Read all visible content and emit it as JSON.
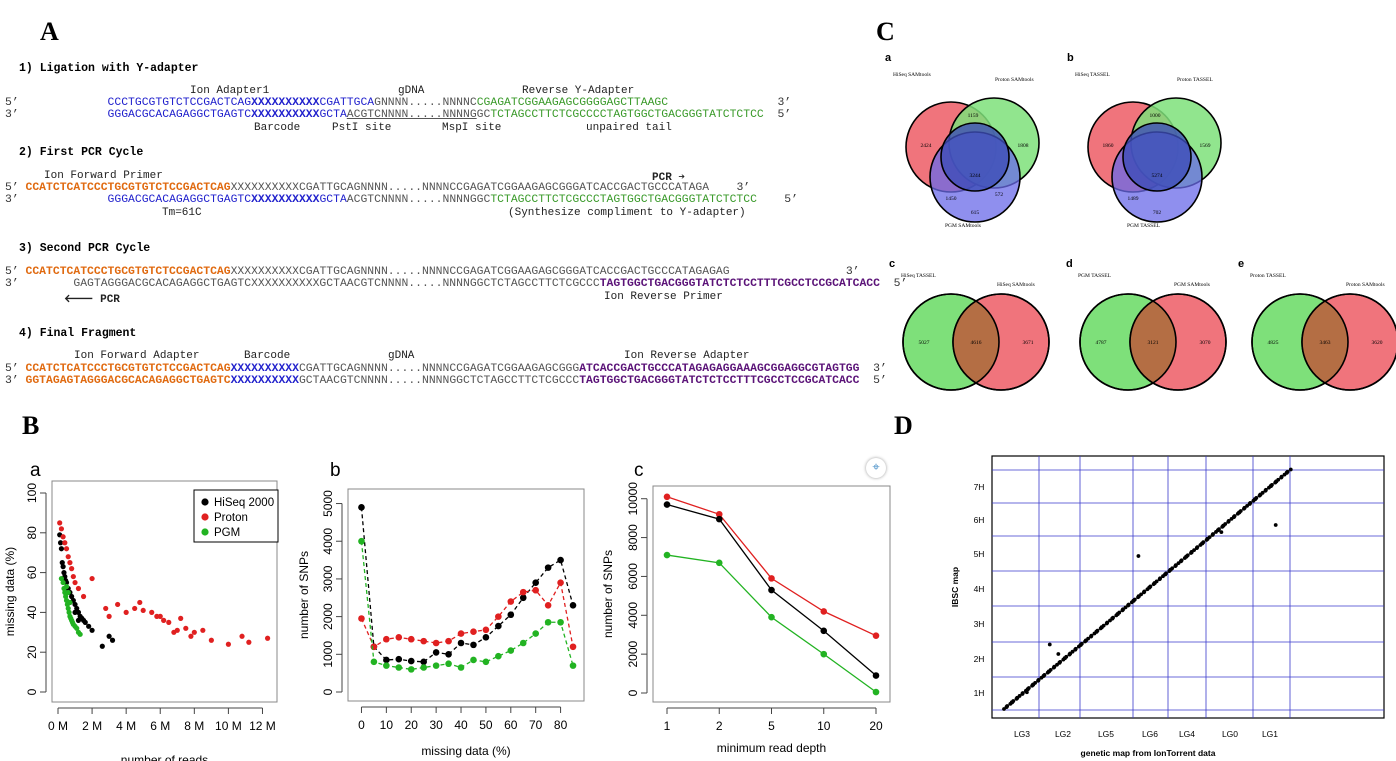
{
  "panels": {
    "A": "A",
    "B": "B",
    "C": "C",
    "D": "D"
  },
  "panelA": {
    "step1": {
      "title": "1) Ligation with Y-adapter",
      "top_labels": {
        "ion_adapter": "Ion Adapter1",
        "gdna": "gDNA",
        "reverse_y": "Reverse Y-Adapter"
      },
      "line1": {
        "p5": "5’",
        "blue": "CCCTGCGTGTCTCCGACTCAG",
        "barcode": "XXXXXXXXXX",
        "blue2": "CGATTGCA",
        "gray": "GNNNN.....NNNNC",
        "green": "CGAGATCGGAAGAGCGGGGAGCTTAAGC",
        "p3": "3’"
      },
      "line2": {
        "p3": "3’",
        "blue": "GGGACGCACAGAGGCTGAGTC",
        "barcode": "XXXXXXXXXX",
        "blue2": "GCTA",
        "gray1": "ACGTCNNNN.....NNNNG",
        "gray2": "GC",
        "green": "TCTAGCCTTCTCGCCCCTAGTGGCTGACGGGTATCTCTCC",
        "p5": "5’"
      },
      "bottom_labels": {
        "barcode": "Barcode",
        "psti": "PstI site",
        "mspi": "MspI site",
        "unpaired": "unpaired tail"
      }
    },
    "step2": {
      "title": "2) First PCR Cycle",
      "primer": "Ion Forward Primer",
      "pcr": "PCR",
      "line1": {
        "p5": "5’",
        "orange": "CCATCTCATCCCTGCGTGTCTCCGACTCAG",
        "gray": "XXXXXXXXXXCGATTGCAGNNNN.....NNNNCCGAGATCGGAAGAGCGGGATCACCGACTGCCCATAGA",
        "p3": "3’"
      },
      "line2": {
        "p3": "3’",
        "blue": "GGGACGCACAGAGGCTGAGTC",
        "barcode": "XXXXXXXXXX",
        "blue2": "GCTA",
        "gray": "ACGTCNNNN.....NNNNGGC",
        "green": "TCTAGCCTTCTCGCCCTAGTGGCTGACGGGTATCTCTCC",
        "p5": "5’"
      },
      "tm": "Tm=61C",
      "note": "(Synthesize compliment to Y-adapter)"
    },
    "step3": {
      "title": "3) Second PCR Cycle",
      "line1": {
        "p5": "5’",
        "orange": "CCATCTCATCCCTGCGTGTCTCCGACTCAG",
        "gray": "XXXXXXXXXXCGATTGCAGNNNN.....NNNNCCGAGATCGGAAGAGCGGGATCACCGACTGCCCATAGAGAG",
        "p3": "3’"
      },
      "line2": {
        "p3": "3’",
        "gray": "GAGTAGGGACGCACAGAGGCTGAGTCXXXXXXXXXXGCTAACGTCNNNN.....NNNNGGCTCTAGCCTTCTCGCCC",
        "purple": "TAGTGGCTGACGGGTATCTCTCCTTTCGCCTCCGCATCACC",
        "p5": "5’"
      },
      "pcr": "PCR",
      "primer": "Ion Reverse Primer"
    },
    "step4": {
      "title": "4) Final Fragment",
      "labels": {
        "fwd": "Ion Forward Adapter",
        "barcode": "Barcode",
        "gdna": "gDNA",
        "rev": "Ion Reverse Adapter"
      },
      "line1": {
        "p5": "5’",
        "orange": "CCATCTCATCCCTGCGTGTCTCCGACTCAG",
        "barcode": "XXXXXXXXXX",
        "gray": "CGATTGCAGNNNN.....NNNNCCGAGATCGGAAGAGCGGG",
        "purple": "ATCACCGACTGCCCATAGAGAGGAAAGCGGAGGCGTAGTGG",
        "p3": "3’"
      },
      "line2": {
        "p3": "3’",
        "orange": "GGTAGAGTAGGGACGCACAGAGGCTGAGTC",
        "barcode": "XXXXXXXXXX",
        "gray": "GCTAACGTCNNNN.....NNNNGGCTCTAGCCTTCTCGCCC",
        "purple": "TAGTGGCTGACGGGTATCTCTCCTTTCGCCTCCGCATCACC",
        "p5": "5’"
      }
    }
  },
  "colors": {
    "red": "#e02020",
    "black": "#000000",
    "green": "#22b322",
    "blue_line": "#3a3acc",
    "venn_red": "#f0747c",
    "venn_green": "#7ee07a",
    "venn_blue": "#6a6ae8",
    "venn_overlap": "#b46e44"
  },
  "chart_data": [
    {
      "id": "Ba",
      "type": "scatter",
      "sublabel": "a",
      "xlabel": "number of reads",
      "ylabel": "missing data (%)",
      "xticks": [
        "0 M",
        "2 M",
        "4 M",
        "6 M",
        "8 M",
        "10 M",
        "12 M"
      ],
      "xlim": [
        0,
        12.5
      ],
      "yticks": [
        0,
        20,
        40,
        60,
        80,
        100
      ],
      "ylim": [
        0,
        100
      ],
      "legend": [
        "HiSeq 2000",
        "Proton",
        "PGM"
      ],
      "series": [
        {
          "name": "HiSeq 2000",
          "color": "#000000",
          "points": [
            [
              0.1,
              79
            ],
            [
              0.15,
              75
            ],
            [
              0.2,
              72
            ],
            [
              0.25,
              65
            ],
            [
              0.3,
              63
            ],
            [
              0.35,
              60
            ],
            [
              0.4,
              58
            ],
            [
              0.45,
              56
            ],
            [
              0.5,
              55
            ],
            [
              0.6,
              52
            ],
            [
              0.7,
              50
            ],
            [
              0.8,
              48
            ],
            [
              0.9,
              46
            ],
            [
              1.0,
              44
            ],
            [
              1.1,
              42
            ],
            [
              1.2,
              40
            ],
            [
              1.3,
              38
            ],
            [
              1.4,
              37
            ],
            [
              1.5,
              36
            ],
            [
              1.6,
              35
            ],
            [
              1.8,
              33
            ],
            [
              2.0,
              31
            ],
            [
              0.7,
              45
            ],
            [
              1.0,
              40
            ],
            [
              1.2,
              36
            ],
            [
              2.6,
              23
            ],
            [
              3.0,
              28
            ],
            [
              3.2,
              26
            ]
          ]
        },
        {
          "name": "Proton",
          "color": "#e02020",
          "points": [
            [
              0.1,
              85
            ],
            [
              0.2,
              82
            ],
            [
              0.3,
              78
            ],
            [
              0.4,
              75
            ],
            [
              0.5,
              72
            ],
            [
              0.6,
              68
            ],
            [
              0.7,
              65
            ],
            [
              0.8,
              62
            ],
            [
              0.9,
              58
            ],
            [
              1.0,
              55
            ],
            [
              1.2,
              52
            ],
            [
              1.5,
              48
            ],
            [
              2.0,
              57
            ],
            [
              3.0,
              38
            ],
            [
              3.5,
              44
            ],
            [
              4.5,
              42
            ],
            [
              4.8,
              45
            ],
            [
              5.0,
              41
            ],
            [
              5.5,
              40
            ],
            [
              6.0,
              38
            ],
            [
              6.2,
              36
            ],
            [
              6.5,
              35
            ],
            [
              7.0,
              31
            ],
            [
              7.5,
              32
            ],
            [
              8.0,
              30
            ],
            [
              8.5,
              31
            ],
            [
              9.0,
              26
            ],
            [
              10.0,
              24
            ],
            [
              10.8,
              28
            ],
            [
              11.2,
              25
            ],
            [
              12.3,
              27
            ],
            [
              7.2,
              37
            ],
            [
              7.8,
              28
            ],
            [
              6.8,
              30
            ],
            [
              5.8,
              38
            ],
            [
              4.0,
              40
            ],
            [
              2.8,
              42
            ]
          ]
        },
        {
          "name": "PGM",
          "color": "#22b322",
          "points": [
            [
              0.2,
              57
            ],
            [
              0.3,
              55
            ],
            [
              0.35,
              52
            ],
            [
              0.4,
              50
            ],
            [
              0.45,
              48
            ],
            [
              0.5,
              46
            ],
            [
              0.55,
              44
            ],
            [
              0.6,
              42
            ],
            [
              0.65,
              40
            ],
            [
              0.7,
              38
            ],
            [
              0.75,
              37
            ],
            [
              0.8,
              36
            ],
            [
              0.85,
              35
            ],
            [
              0.9,
              34
            ],
            [
              1.0,
              33
            ],
            [
              1.1,
              32
            ],
            [
              1.2,
              30
            ],
            [
              1.3,
              29
            ],
            [
              0.5,
              53
            ],
            [
              0.6,
              50
            ],
            [
              0.7,
              45
            ]
          ]
        }
      ]
    },
    {
      "id": "Bb",
      "type": "line",
      "sublabel": "b",
      "xlabel": "missing data (%)",
      "ylabel": "number of SNPs",
      "x": [
        0,
        5,
        10,
        15,
        20,
        25,
        30,
        35,
        40,
        45,
        50,
        55,
        60,
        65,
        70,
        75,
        80,
        85
      ],
      "xticks": [
        0,
        10,
        20,
        30,
        40,
        50,
        60,
        70,
        80
      ],
      "xlim": [
        -3,
        87
      ],
      "yticks": [
        0,
        1000,
        2000,
        3000,
        4000,
        5000
      ],
      "ylim": [
        0,
        5200
      ],
      "series": [
        {
          "name": "HiSeq 2000",
          "color": "#000000",
          "values": [
            4900,
            1200,
            850,
            870,
            820,
            800,
            1050,
            1000,
            1300,
            1250,
            1450,
            1750,
            2050,
            2500,
            2900,
            3300,
            3500,
            2300
          ],
          "dashed": true
        },
        {
          "name": "Proton",
          "color": "#e02020",
          "values": [
            1950,
            1200,
            1400,
            1450,
            1400,
            1350,
            1300,
            1350,
            1550,
            1600,
            1650,
            2000,
            2400,
            2650,
            2700,
            2300,
            2900,
            1200
          ],
          "dashed": true
        },
        {
          "name": "PGM",
          "color": "#22b322",
          "values": [
            4000,
            800,
            700,
            650,
            600,
            650,
            700,
            750,
            650,
            850,
            800,
            950,
            1100,
            1300,
            1550,
            1850,
            1850,
            700
          ],
          "dashed": true
        }
      ]
    },
    {
      "id": "Bc",
      "type": "line",
      "sublabel": "c",
      "xlabel": "minimum read depth",
      "ylabel": "number of SNPs",
      "categories": [
        "1",
        "2",
        "5",
        "10",
        "20"
      ],
      "yticks": [
        0,
        2000,
        4000,
        6000,
        8000,
        10000
      ],
      "ylim": [
        0,
        10500
      ],
      "series": [
        {
          "name": "Proton",
          "color": "#e02020",
          "values": [
            10100,
            9200,
            5900,
            4200,
            2950
          ]
        },
        {
          "name": "HiSeq 2000",
          "color": "#000000",
          "values": [
            9700,
            8950,
            5300,
            3200,
            900
          ]
        },
        {
          "name": "PGM",
          "color": "#22b322",
          "values": [
            7100,
            6700,
            3900,
            2000,
            50
          ]
        }
      ]
    },
    {
      "id": "D",
      "type": "scatter",
      "xlabel": "genetic map from IonTorrent data",
      "ylabel": "IBSC map",
      "xticks": [
        "LG3",
        "LG2",
        "LG5",
        "LG6",
        "LG4",
        "LG0",
        "LG1"
      ],
      "yticks": [
        "1H",
        "2H",
        "3H",
        "4H",
        "5H",
        "6H",
        "7H"
      ],
      "trend": {
        "from": [
          0.0,
          0.0
        ],
        "to": [
          1.0,
          1.0
        ]
      },
      "outliers": [
        [
          0.08,
          0.07
        ],
        [
          0.12,
          0.12
        ],
        [
          0.16,
          0.27
        ],
        [
          0.19,
          0.23
        ],
        [
          0.47,
          0.64
        ],
        [
          0.76,
          0.74
        ],
        [
          0.95,
          0.77
        ]
      ]
    }
  ],
  "venn": {
    "a": {
      "label": "a",
      "set1": "HiSeq SAMtools",
      "set2": "Proton SAMtools",
      "set3": "PGM SAMtools",
      "v1": "2424",
      "v12": "1159",
      "v2": "1808",
      "center": "3244",
      "v13": "1450",
      "v23": "572",
      "v3": "615"
    },
    "b": {
      "label": "b",
      "set1": "HiSeq TASSEL",
      "set2": "Proton TASSEL",
      "set3": "PGM TASSEL",
      "v1": "1860",
      "v12": "1000",
      "v2": "1569",
      "center": "5274",
      "v13": "1489",
      "v23": "",
      "v3": "702"
    },
    "c": {
      "label": "c",
      "set1": "HiSeq TASSEL",
      "set2": "HiSeq SAMtools",
      "v1": "5027",
      "v12": "4616",
      "v2": "3671"
    },
    "d": {
      "label": "d",
      "set1": "PGM TASSEL",
      "set2": "PGM SAMtools",
      "v1": "4787",
      "v12": "3121",
      "v2": "3070"
    },
    "e": {
      "label": "e",
      "set1": "Proton TASSEL",
      "set2": "Proton SAMtools",
      "v1": "4825",
      "v12": "3463",
      "v2": "3620"
    }
  }
}
